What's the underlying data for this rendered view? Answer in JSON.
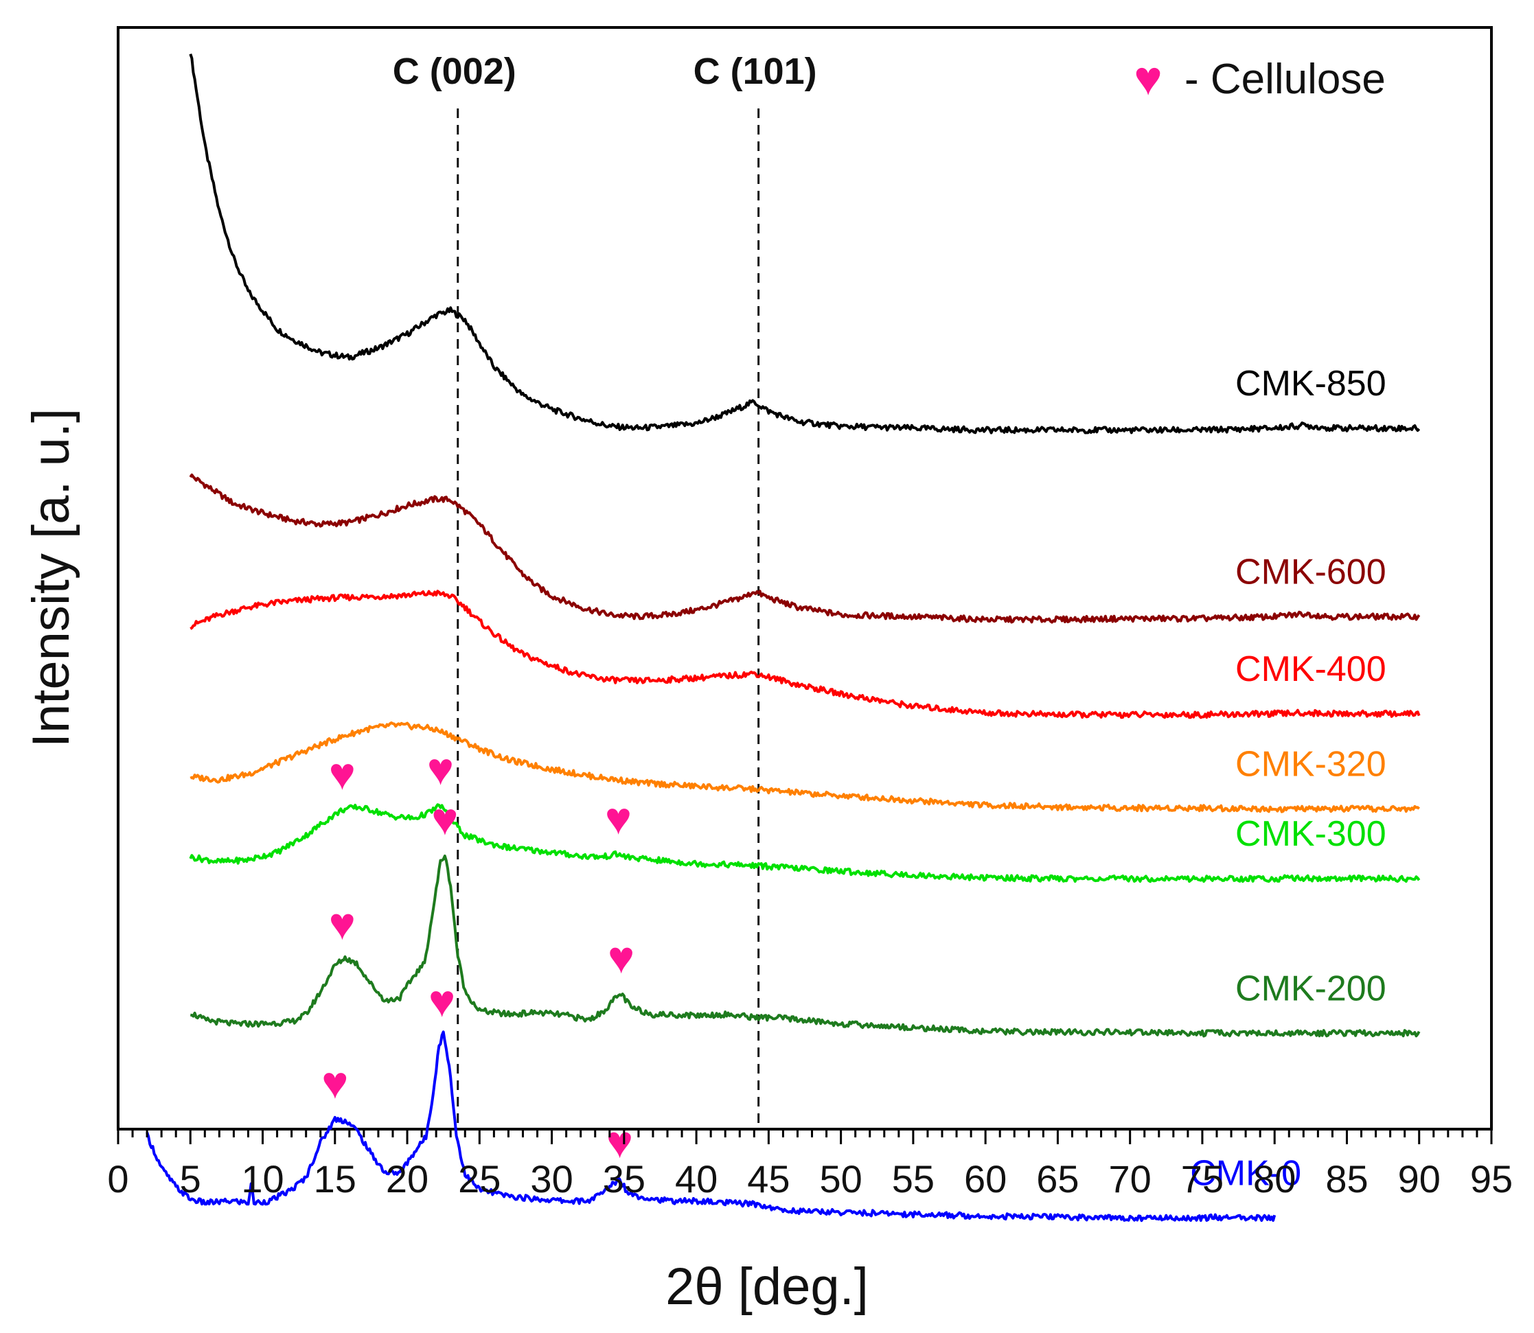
{
  "chart_data": {
    "type": "line",
    "title": "",
    "xlabel": "2θ [deg.]",
    "ylabel": "Intensity [a. u.]",
    "xlim": [
      0,
      95
    ],
    "xticks": [
      0,
      5,
      10,
      15,
      20,
      25,
      30,
      35,
      40,
      45,
      50,
      55,
      60,
      65,
      70,
      75,
      80,
      85,
      90,
      95
    ],
    "y_ticks_shown": false,
    "grid": false,
    "legend": {
      "symbol": "♥",
      "text": "- Cellulose",
      "position": "top-right",
      "color": "#FF1493"
    },
    "reference_lines": [
      {
        "label": "C (002)",
        "x": 23.5
      },
      {
        "label": "C (101)",
        "x": 44.3
      }
    ],
    "series": [
      {
        "name": "CMK-850",
        "color": "#000000",
        "label_x": 82.5,
        "points": [
          [
            5,
            10.6
          ],
          [
            6,
            9.6
          ],
          [
            7,
            8.9
          ],
          [
            8,
            8.4
          ],
          [
            9,
            8.05
          ],
          [
            10,
            7.85
          ],
          [
            11,
            7.65
          ],
          [
            12,
            7.55
          ],
          [
            14,
            7.4
          ],
          [
            16,
            7.35
          ],
          [
            18,
            7.45
          ],
          [
            20,
            7.6
          ],
          [
            22,
            7.8
          ],
          [
            23,
            7.85
          ],
          [
            24,
            7.75
          ],
          [
            25,
            7.5
          ],
          [
            26,
            7.25
          ],
          [
            28,
            6.95
          ],
          [
            30,
            6.8
          ],
          [
            32,
            6.7
          ],
          [
            34,
            6.62
          ],
          [
            36,
            6.6
          ],
          [
            38,
            6.62
          ],
          [
            40,
            6.65
          ],
          [
            42,
            6.75
          ],
          [
            43.5,
            6.85
          ],
          [
            44,
            6.88
          ],
          [
            45,
            6.78
          ],
          [
            47,
            6.67
          ],
          [
            50,
            6.62
          ],
          [
            55,
            6.6
          ],
          [
            60,
            6.58
          ],
          [
            65,
            6.58
          ],
          [
            70,
            6.58
          ],
          [
            75,
            6.58
          ],
          [
            80,
            6.6
          ],
          [
            82,
            6.63
          ],
          [
            84,
            6.6
          ],
          [
            90,
            6.6
          ]
        ]
      },
      {
        "name": "CMK-600",
        "color": "#8B0000",
        "label_x": 82.5,
        "points": [
          [
            5,
            6.1
          ],
          [
            6,
            6.0
          ],
          [
            7,
            5.9
          ],
          [
            8,
            5.8
          ],
          [
            10,
            5.7
          ],
          [
            12,
            5.62
          ],
          [
            14,
            5.58
          ],
          [
            16,
            5.6
          ],
          [
            18,
            5.68
          ],
          [
            20,
            5.78
          ],
          [
            22,
            5.85
          ],
          [
            23,
            5.84
          ],
          [
            24,
            5.72
          ],
          [
            25,
            5.58
          ],
          [
            26,
            5.4
          ],
          [
            27,
            5.22
          ],
          [
            28,
            5.05
          ],
          [
            29,
            4.92
          ],
          [
            30,
            4.82
          ],
          [
            32,
            4.7
          ],
          [
            34,
            4.62
          ],
          [
            36,
            4.6
          ],
          [
            38,
            4.62
          ],
          [
            40,
            4.67
          ],
          [
            42,
            4.75
          ],
          [
            43.5,
            4.82
          ],
          [
            44,
            4.87
          ],
          [
            45,
            4.8
          ],
          [
            47,
            4.7
          ],
          [
            50,
            4.62
          ],
          [
            55,
            4.6
          ],
          [
            60,
            4.57
          ],
          [
            65,
            4.57
          ],
          [
            70,
            4.58
          ],
          [
            75,
            4.58
          ],
          [
            80,
            4.6
          ],
          [
            82,
            4.63
          ],
          [
            84,
            4.6
          ],
          [
            90,
            4.6
          ]
        ]
      },
      {
        "name": "CMK-400",
        "color": "#FF0000",
        "label_x": 82.5,
        "points": [
          [
            5,
            4.5
          ],
          [
            7,
            4.62
          ],
          [
            9,
            4.7
          ],
          [
            11,
            4.75
          ],
          [
            13,
            4.78
          ],
          [
            15,
            4.8
          ],
          [
            17,
            4.81
          ],
          [
            19,
            4.82
          ],
          [
            21,
            4.84
          ],
          [
            22,
            4.85
          ],
          [
            23,
            4.82
          ],
          [
            24,
            4.7
          ],
          [
            25,
            4.55
          ],
          [
            26,
            4.42
          ],
          [
            27,
            4.3
          ],
          [
            28,
            4.2
          ],
          [
            30,
            4.08
          ],
          [
            32,
            3.98
          ],
          [
            34,
            3.93
          ],
          [
            36,
            3.92
          ],
          [
            38,
            3.93
          ],
          [
            40,
            3.95
          ],
          [
            42,
            3.97
          ],
          [
            43.5,
            3.99
          ],
          [
            44,
            4.0
          ],
          [
            45,
            3.96
          ],
          [
            47,
            3.88
          ],
          [
            50,
            3.78
          ],
          [
            55,
            3.65
          ],
          [
            60,
            3.58
          ],
          [
            65,
            3.56
          ],
          [
            70,
            3.56
          ],
          [
            75,
            3.56
          ],
          [
            80,
            3.57
          ],
          [
            82,
            3.58
          ],
          [
            84,
            3.57
          ],
          [
            90,
            3.57
          ]
        ]
      },
      {
        "name": "CMK-320",
        "color": "#FF8000",
        "label_x": 82.5,
        "points": [
          [
            5,
            2.9
          ],
          [
            7,
            2.87
          ],
          [
            9,
            2.93
          ],
          [
            11,
            3.05
          ],
          [
            13,
            3.18
          ],
          [
            15,
            3.3
          ],
          [
            17,
            3.4
          ],
          [
            19,
            3.45
          ],
          [
            21,
            3.43
          ],
          [
            22,
            3.4
          ],
          [
            23,
            3.34
          ],
          [
            25,
            3.2
          ],
          [
            27,
            3.08
          ],
          [
            30,
            2.98
          ],
          [
            33,
            2.9
          ],
          [
            36,
            2.84
          ],
          [
            40,
            2.8
          ],
          [
            44,
            2.77
          ],
          [
            48,
            2.72
          ],
          [
            52,
            2.68
          ],
          [
            56,
            2.64
          ],
          [
            60,
            2.6
          ],
          [
            65,
            2.58
          ],
          [
            70,
            2.57
          ],
          [
            75,
            2.57
          ],
          [
            80,
            2.56
          ],
          [
            85,
            2.56
          ],
          [
            90,
            2.56
          ]
        ]
      },
      {
        "name": "CMK-300",
        "color": "#00E000",
        "label_x": 82.5,
        "points": [
          [
            5,
            2.05
          ],
          [
            7,
            2.0
          ],
          [
            9,
            2.02
          ],
          [
            11,
            2.1
          ],
          [
            13,
            2.28
          ],
          [
            14.5,
            2.45
          ],
          [
            15.5,
            2.55
          ],
          [
            16.5,
            2.58
          ],
          [
            17.5,
            2.55
          ],
          [
            19,
            2.48
          ],
          [
            20.5,
            2.46
          ],
          [
            21.5,
            2.52
          ],
          [
            22.3,
            2.6
          ],
          [
            23,
            2.45
          ],
          [
            24,
            2.28
          ],
          [
            25.5,
            2.2
          ],
          [
            27,
            2.15
          ],
          [
            30,
            2.1
          ],
          [
            32,
            2.06
          ],
          [
            33.5,
            2.05
          ],
          [
            34.5,
            2.08
          ],
          [
            35.5,
            2.04
          ],
          [
            37,
            2.02
          ],
          [
            40,
            1.98
          ],
          [
            44,
            1.96
          ],
          [
            48,
            1.92
          ],
          [
            52,
            1.88
          ],
          [
            56,
            1.85
          ],
          [
            60,
            1.83
          ],
          [
            65,
            1.82
          ],
          [
            70,
            1.82
          ],
          [
            75,
            1.82
          ],
          [
            80,
            1.82
          ],
          [
            81.5,
            1.83
          ],
          [
            83,
            1.82
          ],
          [
            90,
            1.82
          ]
        ]
      },
      {
        "name": "CMK-200",
        "color": "#1E7B1E",
        "label_x": 82.5,
        "points": [
          [
            5,
            0.4
          ],
          [
            6,
            0.32
          ],
          [
            8,
            0.28
          ],
          [
            10,
            0.28
          ],
          [
            12,
            0.3
          ],
          [
            13,
            0.38
          ],
          [
            14,
            0.62
          ],
          [
            15,
            0.9
          ],
          [
            15.7,
            0.98
          ],
          [
            16.5,
            0.92
          ],
          [
            17.5,
            0.7
          ],
          [
            18.5,
            0.52
          ],
          [
            19.5,
            0.56
          ],
          [
            20.5,
            0.8
          ],
          [
            21.2,
            0.92
          ],
          [
            21.8,
            1.5
          ],
          [
            22.3,
            2.0
          ],
          [
            22.6,
            2.07
          ],
          [
            23,
            1.75
          ],
          [
            23.5,
            1.0
          ],
          [
            24,
            0.62
          ],
          [
            25,
            0.42
          ],
          [
            27,
            0.38
          ],
          [
            29,
            0.4
          ],
          [
            31,
            0.37
          ],
          [
            32.5,
            0.32
          ],
          [
            33.5,
            0.4
          ],
          [
            34.2,
            0.52
          ],
          [
            34.8,
            0.6
          ],
          [
            35.5,
            0.45
          ],
          [
            37,
            0.38
          ],
          [
            40,
            0.37
          ],
          [
            42,
            0.38
          ],
          [
            44,
            0.35
          ],
          [
            46,
            0.34
          ],
          [
            50,
            0.28
          ],
          [
            55,
            0.24
          ],
          [
            60,
            0.2
          ],
          [
            65,
            0.19
          ],
          [
            70,
            0.19
          ],
          [
            75,
            0.18
          ],
          [
            80,
            0.18
          ],
          [
            85,
            0.18
          ],
          [
            90,
            0.18
          ]
        ]
      },
      {
        "name": "CMK-0",
        "color": "#0000FF",
        "label_x": 78,
        "points": [
          [
            2,
            -0.9
          ],
          [
            3,
            -1.25
          ],
          [
            4,
            -1.45
          ],
          [
            5,
            -1.58
          ],
          [
            6,
            -1.62
          ],
          [
            8,
            -1.6
          ],
          [
            9,
            -1.62
          ],
          [
            9.2,
            -1.42
          ],
          [
            9.4,
            -1.62
          ],
          [
            10.5,
            -1.6
          ],
          [
            12,
            -1.48
          ],
          [
            13,
            -1.35
          ],
          [
            14,
            -0.98
          ],
          [
            15,
            -0.73
          ],
          [
            15.8,
            -0.75
          ],
          [
            16.5,
            -0.85
          ],
          [
            17.5,
            -1.1
          ],
          [
            18.5,
            -1.3
          ],
          [
            19.5,
            -1.3
          ],
          [
            20.5,
            -1.08
          ],
          [
            21.3,
            -0.92
          ],
          [
            21.8,
            -0.45
          ],
          [
            22.2,
            0.05
          ],
          [
            22.5,
            0.18
          ],
          [
            22.9,
            -0.15
          ],
          [
            23.4,
            -0.9
          ],
          [
            24,
            -1.32
          ],
          [
            25,
            -1.48
          ],
          [
            27,
            -1.55
          ],
          [
            29,
            -1.58
          ],
          [
            31,
            -1.6
          ],
          [
            32.5,
            -1.6
          ],
          [
            33.5,
            -1.52
          ],
          [
            34.2,
            -1.42
          ],
          [
            34.7,
            -1.36
          ],
          [
            35.2,
            -1.5
          ],
          [
            36,
            -1.55
          ],
          [
            38,
            -1.6
          ],
          [
            40,
            -1.6
          ],
          [
            42,
            -1.62
          ],
          [
            44,
            -1.63
          ],
          [
            46,
            -1.7
          ],
          [
            50,
            -1.72
          ],
          [
            55,
            -1.74
          ],
          [
            60,
            -1.76
          ],
          [
            65,
            -1.77
          ],
          [
            70,
            -1.78
          ],
          [
            75,
            -1.78
          ],
          [
            76,
            -1.77
          ],
          [
            77,
            -1.78
          ],
          [
            80,
            -1.78
          ]
        ]
      }
    ],
    "peak_markers": [
      {
        "series": "CMK-300",
        "x": 15.5
      },
      {
        "series": "CMK-300",
        "x": 22.3
      },
      {
        "series": "CMK-300",
        "x": 34.6
      },
      {
        "series": "CMK-200",
        "x": 15.5
      },
      {
        "series": "CMK-200",
        "x": 22.6
      },
      {
        "series": "CMK-200",
        "x": 34.8
      },
      {
        "series": "CMK-0",
        "x": 15
      },
      {
        "series": "CMK-0",
        "x": 22.4
      },
      {
        "series": "CMK-0",
        "x": 34.7
      }
    ]
  }
}
